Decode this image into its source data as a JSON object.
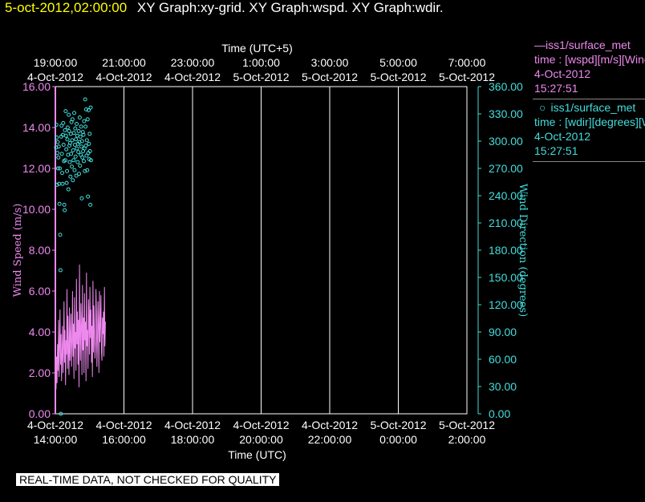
{
  "header": {
    "timestamp": "5-oct-2012,02:00:00",
    "graphs": "XY Graph:xy-grid.  XY Graph:wspd.  XY Graph:wdir."
  },
  "legend": {
    "wspd": {
      "title": "—iss1/surface_met",
      "desc": "time : [wspd][m/s][Wind",
      "date": "4-Oct-2012",
      "time": "15:27:51"
    },
    "wdir": {
      "title": "iss1/surface_met",
      "desc": "time : [wdir][degrees][W",
      "date": "4-Oct-2012",
      "time": "15:27:51"
    }
  },
  "disclaimer": "REAL-TIME DATA, NOT CHECKED FOR QUALITY",
  "colors": {
    "wspd": "#ee88ee",
    "wdir": "#44dddd",
    "grid": "#ffffff",
    "background": "#000000"
  },
  "chart_data": {
    "type": "line",
    "x_bottom": {
      "label": "Time (UTC)",
      "ticks": [
        {
          "hour": 14,
          "date": "4-Oct-2012",
          "time": "14:00:00"
        },
        {
          "hour": 16,
          "date": "4-Oct-2012",
          "time": "16:00:00"
        },
        {
          "hour": 18,
          "date": "4-Oct-2012",
          "time": "18:00:00"
        },
        {
          "hour": 20,
          "date": "4-Oct-2012",
          "time": "20:00:00"
        },
        {
          "hour": 22,
          "date": "4-Oct-2012",
          "time": "22:00:00"
        },
        {
          "hour": 24,
          "date": "5-Oct-2012",
          "time": "0:00:00"
        },
        {
          "hour": 26,
          "date": "5-Oct-2012",
          "time": "2:00:00"
        }
      ],
      "range_hours": [
        14,
        26
      ]
    },
    "x_top": {
      "label": "Time (UTC+5)",
      "ticks": [
        {
          "time": "19:00:00",
          "date": "4-Oct-2012"
        },
        {
          "time": "21:00:00",
          "date": "4-Oct-2012"
        },
        {
          "time": "23:00:00",
          "date": "4-Oct-2012"
        },
        {
          "time": "1:00:00",
          "date": "5-Oct-2012"
        },
        {
          "time": "3:00:00",
          "date": "5-Oct-2012"
        },
        {
          "time": "5:00:00",
          "date": "5-Oct-2012"
        },
        {
          "time": "7:00:00",
          "date": "5-Oct-2012"
        }
      ]
    },
    "y_left": {
      "label": "Wind Speed (m/s)",
      "range": [
        0,
        16
      ],
      "ticks": [
        "0.00",
        "2.00",
        "4.00",
        "6.00",
        "8.00",
        "10.00",
        "12.00",
        "14.00",
        "16.00"
      ]
    },
    "y_right": {
      "label": "Wind Direction (degrees)",
      "range": [
        0,
        360
      ],
      "ticks": [
        "0.00",
        "30.00",
        "60.00",
        "90.00",
        "120.00",
        "150.00",
        "180.00",
        "210.00",
        "240.00",
        "270.00",
        "300.00",
        "330.00",
        "360.00"
      ]
    },
    "grid": true,
    "series": [
      {
        "name": "iss1/surface_met wspd",
        "axis": "left",
        "style": "line",
        "x_start_hour": 14.02,
        "x_end_hour": 15.46,
        "values": [
          1.2,
          2.8,
          1.5,
          3.4,
          2.1,
          4.6,
          1.8,
          3.1,
          5.1,
          2.4,
          3.9,
          1.6,
          2.7,
          4.3,
          2.0,
          3.3,
          5.5,
          2.5,
          4.1,
          1.4,
          3.6,
          2.9,
          6.1,
          2.2,
          4.8,
          3.0,
          1.9,
          5.2,
          2.6,
          3.8,
          4.9,
          2.3,
          3.5,
          6.0,
          2.8,
          4.4,
          1.7,
          5.7,
          3.2,
          4.0,
          2.1,
          6.6,
          3.4,
          5.0,
          2.4,
          4.6,
          1.3,
          7.3,
          3.9,
          2.6,
          5.4,
          4.2,
          1.9,
          6.3,
          3.1,
          4.7,
          2.0,
          5.9,
          3.6,
          4.5,
          1.6,
          6.9,
          3.3,
          4.1,
          2.2,
          5.6,
          4.8,
          2.9,
          6.2,
          3.7,
          5.1,
          2.5,
          4.3,
          1.8,
          6.5,
          3.0,
          5.3,
          4.0,
          2.7,
          3.4,
          6.1,
          4.9,
          2.3,
          3.8,
          5.5,
          4.2,
          2.0,
          6.0,
          3.5,
          4.4,
          5.8,
          3.1,
          2.6,
          4.7,
          3.9,
          5.0,
          2.8,
          6.2,
          3.3,
          4.5
        ]
      },
      {
        "name": "iss1/surface_met wdir",
        "axis": "right",
        "style": "points",
        "points": [
          [
            14.02,
            293
          ],
          [
            14.03,
            318
          ],
          [
            14.04,
            304
          ],
          [
            14.05,
            252
          ],
          [
            14.06,
            287
          ],
          [
            14.07,
            299
          ],
          [
            14.08,
            270
          ],
          [
            14.09,
            282
          ],
          [
            14.1,
            294
          ],
          [
            14.11,
            253
          ],
          [
            14.12,
            231
          ],
          [
            14.13,
            270
          ],
          [
            14.14,
            197
          ],
          [
            14.15,
            158
          ],
          [
            14.16,
            0
          ],
          [
            14.17,
            305
          ],
          [
            14.18,
            317
          ],
          [
            14.19,
            286
          ],
          [
            14.2,
            265
          ],
          [
            14.21,
            253
          ],
          [
            14.22,
            307
          ],
          [
            14.23,
            320
          ],
          [
            14.24,
            296
          ],
          [
            14.25,
            278
          ],
          [
            14.26,
            230
          ],
          [
            14.27,
            224
          ],
          [
            14.28,
            312
          ],
          [
            14.29,
            279
          ],
          [
            14.3,
            333
          ],
          [
            14.31,
            306
          ],
          [
            14.32,
            291
          ],
          [
            14.33,
            254
          ],
          [
            14.34,
            267
          ],
          [
            14.35,
            302
          ],
          [
            14.36,
            315
          ],
          [
            14.37,
            285
          ],
          [
            14.38,
            247
          ],
          [
            14.39,
            329
          ],
          [
            14.4,
            311
          ],
          [
            14.41,
            295
          ],
          [
            14.42,
            277
          ],
          [
            14.43,
            298
          ],
          [
            14.44,
            261
          ],
          [
            14.45,
            308
          ],
          [
            14.46,
            286
          ],
          [
            14.47,
            321
          ],
          [
            14.48,
            272
          ],
          [
            14.49,
            301
          ],
          [
            14.5,
            324
          ],
          [
            14.51,
            257
          ],
          [
            14.52,
            290
          ],
          [
            14.53,
            279
          ],
          [
            14.54,
            309
          ],
          [
            14.55,
            331
          ],
          [
            14.56,
            268
          ],
          [
            14.57,
            296
          ],
          [
            14.58,
            314
          ],
          [
            14.59,
            283
          ],
          [
            14.6,
            302
          ],
          [
            14.61,
            262
          ],
          [
            14.62,
            319
          ],
          [
            14.63,
            292
          ],
          [
            14.64,
            306
          ],
          [
            14.65,
            277
          ],
          [
            14.66,
            297
          ],
          [
            14.67,
            288
          ],
          [
            14.68,
            311
          ],
          [
            14.69,
            264
          ],
          [
            14.7,
            299
          ],
          [
            14.71,
            326
          ],
          [
            14.72,
            273
          ],
          [
            14.73,
            305
          ],
          [
            14.74,
            285
          ],
          [
            14.75,
            316
          ],
          [
            14.76,
            294
          ],
          [
            14.77,
            237
          ],
          [
            14.78,
            300
          ],
          [
            14.79,
            282
          ],
          [
            14.8,
            310
          ],
          [
            14.81,
            289
          ],
          [
            14.82,
            307
          ],
          [
            14.83,
            278
          ],
          [
            14.84,
            322
          ],
          [
            14.85,
            292
          ],
          [
            14.86,
            267
          ],
          [
            14.87,
            346
          ],
          [
            14.88,
            316
          ],
          [
            14.89,
            295
          ],
          [
            14.9,
            335
          ],
          [
            14.91,
            284
          ],
          [
            14.92,
            301
          ],
          [
            14.93,
            268
          ],
          [
            14.94,
            324
          ],
          [
            14.95,
            239
          ],
          [
            14.96,
            287
          ],
          [
            14.97,
            334
          ],
          [
            14.98,
            297
          ],
          [
            14.99,
            280
          ],
          [
            15.0,
            308
          ],
          [
            15.01,
            289
          ],
          [
            15.02,
            230
          ],
          [
            15.03,
            337
          ],
          [
            15.04,
            279
          ]
        ]
      }
    ]
  }
}
